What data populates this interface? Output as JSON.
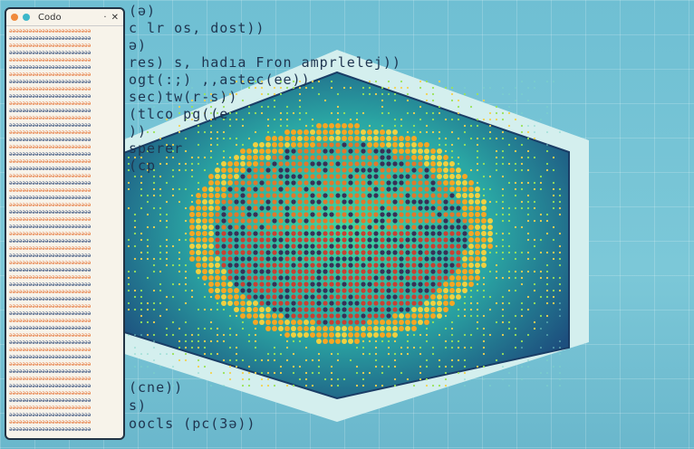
{
  "window": {
    "title": "Codo",
    "minimize_icon": "minimize-icon",
    "close_icon": "close-icon",
    "dot_colors": [
      "#f08a3c",
      "#3db7c9"
    ]
  },
  "code_lines": [
    {
      "text": "(ə)"
    },
    {
      "text": "c lr os, dost))"
    },
    {
      "text": "ə)"
    },
    {
      "text": "res) s, hadıa Fron amprlelej))"
    },
    {
      "text": "ogt(:;) ,,astec(ee))"
    },
    {
      "text": "sec)tw(r-s))"
    },
    {
      "text": "(tlco pg((e"
    },
    {
      "text": "))"
    },
    {
      "text": "sperer"
    },
    {
      "text": "(cp"
    },
    {
      "text": "(cne))"
    },
    {
      "text": "s)"
    },
    {
      "text": "oocls (pc(3ə))"
    }
  ],
  "colors": {
    "background": "#74c2d6",
    "hex_frame": "#d7f0ef",
    "panel": "#1d5f86",
    "core": "#c9452f",
    "ring": "#f5a623"
  }
}
